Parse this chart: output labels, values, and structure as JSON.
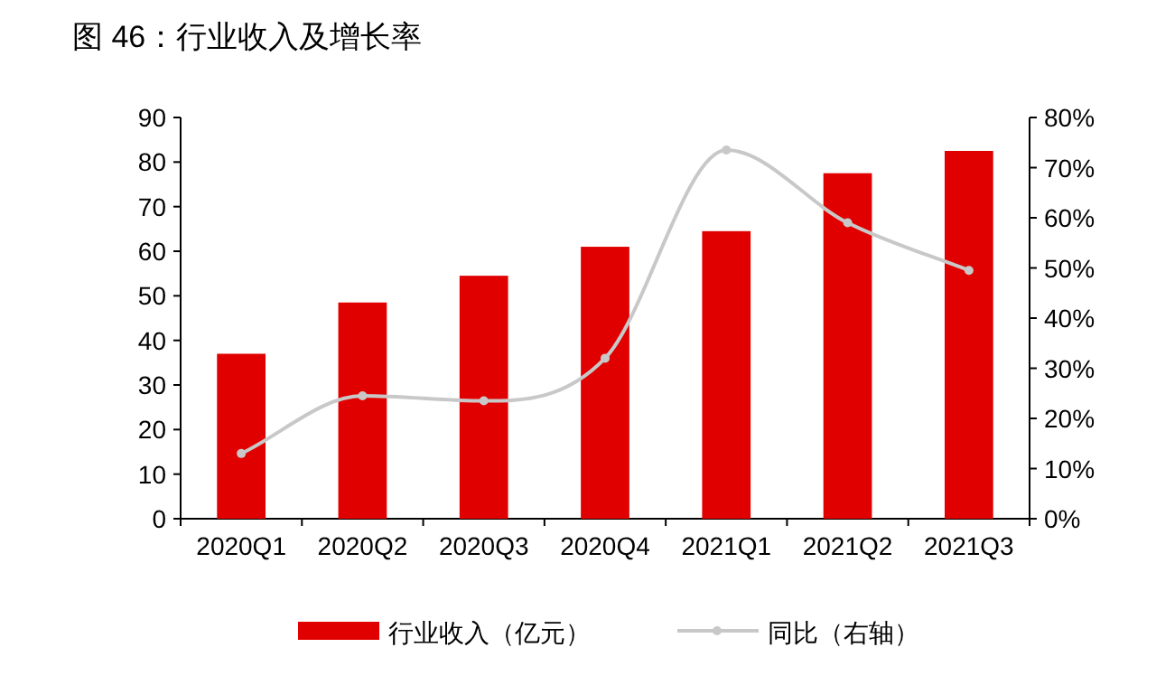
{
  "chart_data": {
    "type": "bar",
    "title": "图 46：行业收入及增长率",
    "categories": [
      "2020Q1",
      "2020Q2",
      "2020Q3",
      "2020Q4",
      "2021Q1",
      "2021Q2",
      "2021Q3"
    ],
    "series": [
      {
        "name": "行业收入（亿元）",
        "color": "#e00000",
        "values": [
          37,
          48.5,
          54.5,
          61,
          64.5,
          77.5,
          82.5
        ]
      },
      {
        "name": "同比（右轴）",
        "type": "line",
        "axis": "y2",
        "color": "#c8c8c8",
        "marker": "circle",
        "values": [
          13,
          24.5,
          23.5,
          32,
          73.5,
          59,
          49.5
        ]
      }
    ],
    "ylim": [
      0,
      90
    ],
    "yticks": [
      0,
      10,
      20,
      30,
      40,
      50,
      60,
      70,
      80,
      90
    ],
    "y2lim": [
      0,
      80
    ],
    "y2ticks": [
      {
        "value": 0,
        "label": "0%"
      },
      {
        "value": 10,
        "label": "10%"
      },
      {
        "value": 20,
        "label": "20%"
      },
      {
        "value": 30,
        "label": "30%"
      },
      {
        "value": 40,
        "label": "40%"
      },
      {
        "value": 50,
        "label": "50%"
      },
      {
        "value": 60,
        "label": "60%"
      },
      {
        "value": 70,
        "label": "70%"
      },
      {
        "value": 80,
        "label": "80%"
      }
    ],
    "grid": false,
    "legend": "bottom"
  }
}
